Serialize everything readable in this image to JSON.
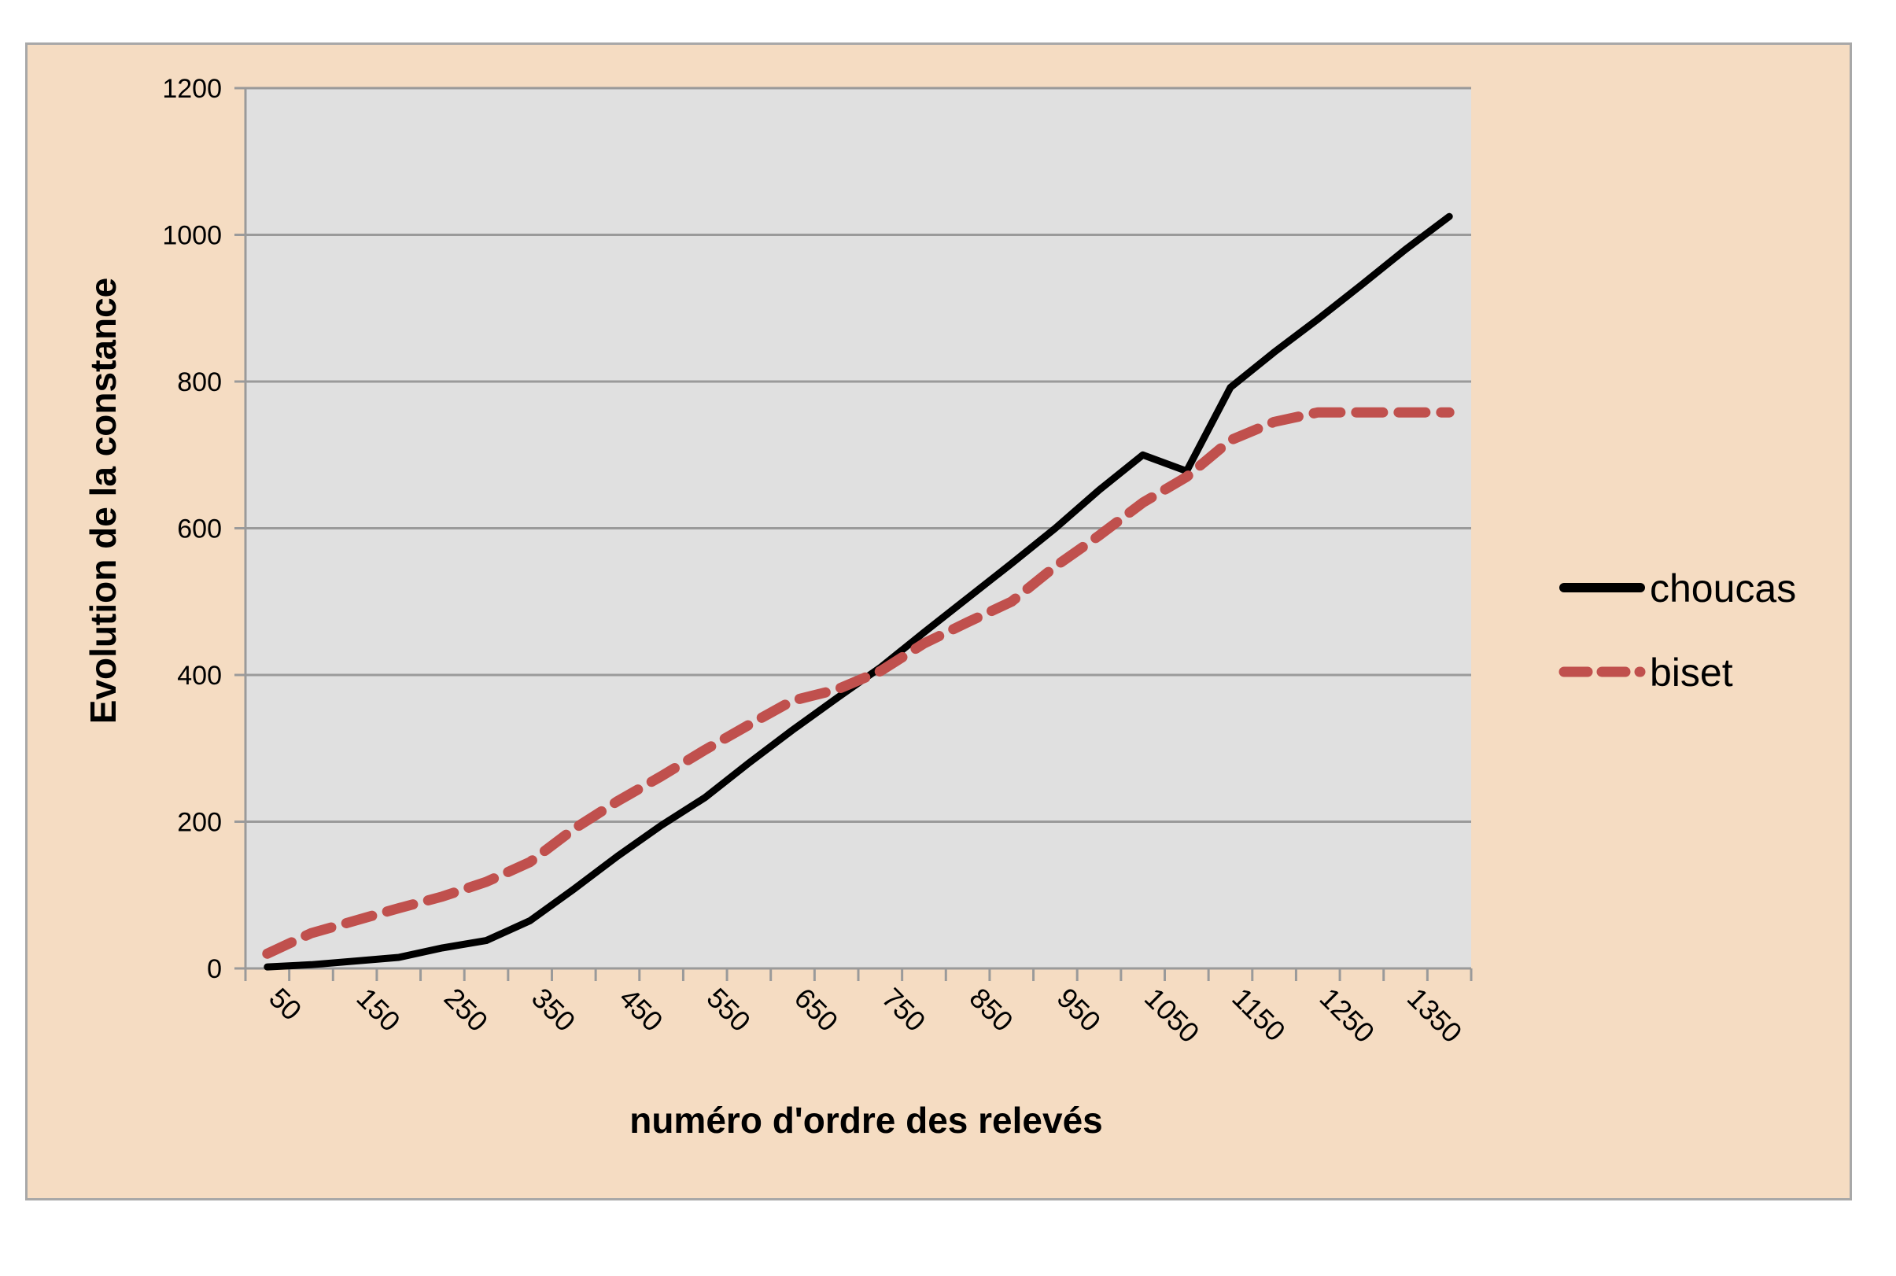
{
  "chart_data": {
    "type": "line",
    "title": "",
    "xlabel": "numéro d'ordre des relevés",
    "ylabel": "Evolution de la constance",
    "ylim": [
      0,
      1200
    ],
    "yticks": [
      "0",
      "200",
      "400",
      "600",
      "800",
      "1000",
      "1200"
    ],
    "categories": [
      "50",
      "100",
      "150",
      "200",
      "250",
      "300",
      "350",
      "400",
      "450",
      "500",
      "550",
      "600",
      "650",
      "700",
      "750",
      "800",
      "850",
      "900",
      "950",
      "1000",
      "1050",
      "1100",
      "1150",
      "1200",
      "1250",
      "1300",
      "1350",
      "1400"
    ],
    "xtick_labels": [
      "50",
      "150",
      "250",
      "350",
      "450",
      "550",
      "650",
      "750",
      "850",
      "950",
      "1050",
      "1150",
      "1250",
      "1350"
    ],
    "grid": true,
    "legend_position": "right",
    "series": [
      {
        "name": "choucas",
        "color": "#000000",
        "style": "solid",
        "values": [
          2,
          5,
          10,
          15,
          28,
          38,
          65,
          108,
          153,
          195,
          233,
          280,
          325,
          368,
          410,
          458,
          505,
          552,
          600,
          652,
          700,
          678,
          792,
          840,
          885,
          932,
          980,
          1025
        ]
      },
      {
        "name": "biset",
        "color": "#c0504d",
        "style": "dashed",
        "values": [
          20,
          48,
          65,
          82,
          98,
          118,
          145,
          190,
          228,
          262,
          298,
          332,
          365,
          380,
          405,
          443,
          472,
          500,
          548,
          590,
          635,
          670,
          720,
          745,
          758,
          758,
          758,
          758
        ]
      }
    ]
  },
  "colors": {
    "frame_background": "#f5dcc2",
    "plot_background": "#e0e0e0",
    "gridline": "#9a9a9a"
  }
}
